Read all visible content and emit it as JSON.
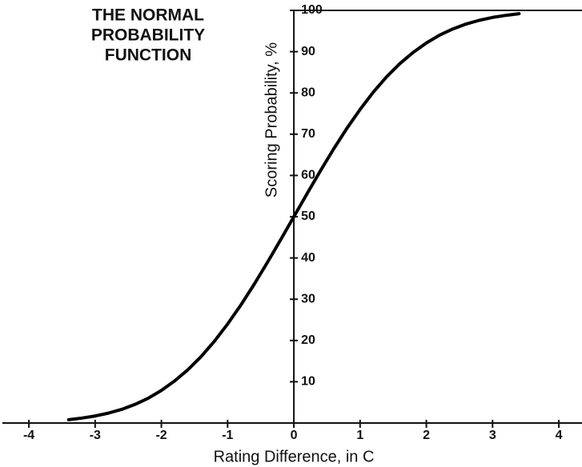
{
  "chart_data": {
    "type": "line",
    "title": [
      "THE NORMAL",
      "PROBABILITY",
      "FUNCTION"
    ],
    "x_label": "Rating Difference, in C",
    "y_label": "Scoring Probability, %",
    "x": [
      -3.4,
      -3.2,
      -3.0,
      -2.8,
      -2.6,
      -2.4,
      -2.2,
      -2.0,
      -1.8,
      -1.6,
      -1.4,
      -1.2,
      -1.0,
      -0.8,
      -0.6,
      -0.4,
      -0.2,
      0,
      0.2,
      0.4,
      0.6,
      0.8,
      1.0,
      1.2,
      1.4,
      1.6,
      1.8,
      2.0,
      2.2,
      2.4,
      2.6,
      2.8,
      3.0,
      3.2,
      3.4
    ],
    "series": [
      {
        "color": "#000000",
        "values": [
          0.8,
          1.2,
          1.7,
          2.4,
          3.3,
          4.5,
          6.0,
          7.9,
          10.2,
          12.9,
          16.1,
          19.8,
          24.0,
          28.6,
          33.6,
          38.9,
          44.4,
          50,
          55.6,
          61.1,
          66.4,
          71.4,
          76.0,
          80.2,
          83.9,
          87.1,
          89.8,
          92.1,
          94.0,
          95.5,
          96.7,
          97.6,
          98.3,
          98.8,
          99.2
        ]
      }
    ],
    "xlim": [
      -4.4,
      4.35
    ],
    "ylim": [
      0,
      100
    ],
    "xticks": [
      -4,
      -3,
      -2,
      -1,
      0,
      1,
      2,
      3,
      4
    ],
    "yticks": [
      10,
      20,
      30,
      40,
      50,
      60,
      70,
      80,
      90,
      100
    ]
  }
}
